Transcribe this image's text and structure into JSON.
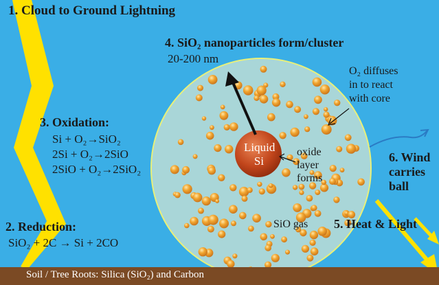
{
  "labels": {
    "lightning": "1. Cloud to Ground Lightning",
    "reduction_title": "2. Reduction:",
    "reduction_eq": "SiO₂ + 2C → Si + 2CO",
    "oxidation_title": "3. Oxidation:",
    "oxidation_eqs": [
      "Si + O₂→SiO₂",
      "2Si + O₂→2SiO",
      "2SiO + O₂→2SiO₂"
    ],
    "nanoparticles_title": "4. SiO₂ nanoparticles form/cluster",
    "nanoparticles_size": "20-200 nm",
    "o2_note": [
      "O₂ diffuses",
      "in to react",
      "with core"
    ],
    "core": [
      "Liquid",
      "Si"
    ],
    "oxide_note": [
      "oxide",
      "layer",
      "forms"
    ],
    "sio_gas": "SiO gas",
    "heat_light": "5. Heat & Light",
    "wind": [
      "6. Wind",
      "carries",
      "ball"
    ],
    "soil": "Soil / Tree Roots: Silica (SiO₂) and Carbon"
  },
  "colors": {
    "sky": "#3aaee6",
    "lightning": "#ffe100",
    "ball_fill": "#a9d6d8",
    "ball_stroke": "#e8f07a",
    "core": "#c2461c",
    "particle": "#f2a630",
    "soil": "#7b4a24"
  },
  "icons": {
    "lightning": "lightning-bolt-icon",
    "light_rays": "arrow-icon",
    "wind": "wind-arrow-icon"
  }
}
